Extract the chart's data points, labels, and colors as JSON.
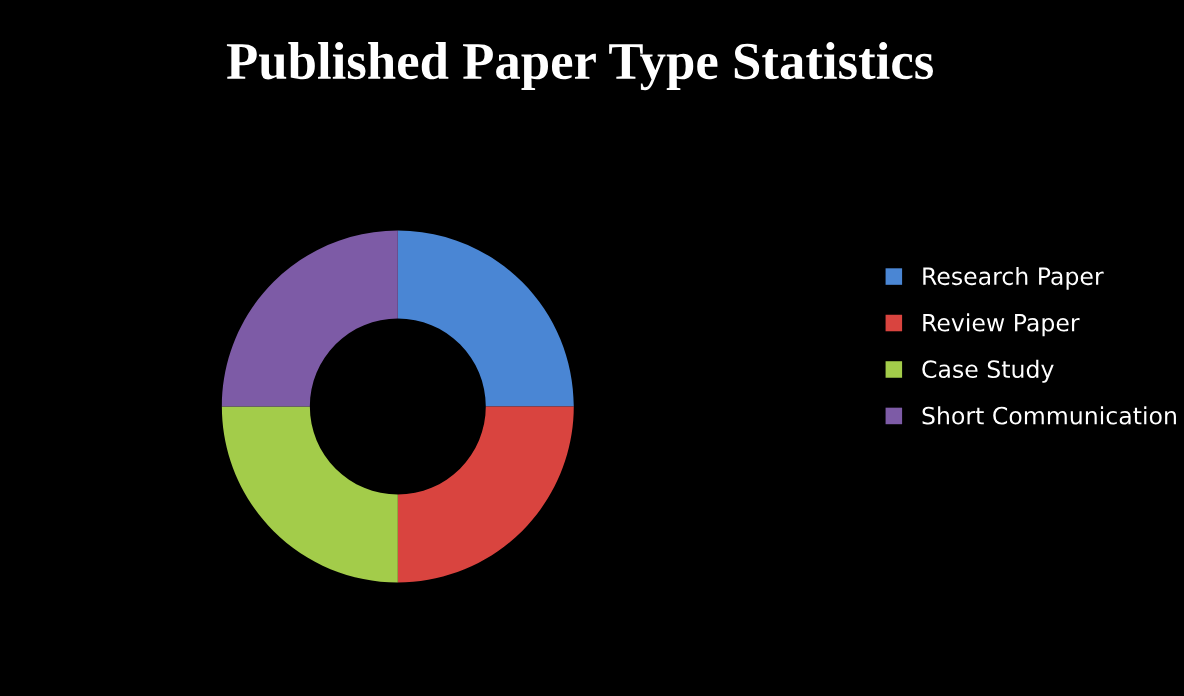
{
  "chart_data": {
    "type": "donut",
    "title": "Published Paper Type Statistics",
    "categories": [
      "Research Paper",
      "Review Paper",
      "Case Study",
      "Short Communication"
    ],
    "values": [
      25,
      25,
      25,
      25
    ],
    "colors": [
      "#4a86d4",
      "#d9443f",
      "#a3cc4a",
      "#7d5ba6"
    ],
    "legend": "right"
  }
}
